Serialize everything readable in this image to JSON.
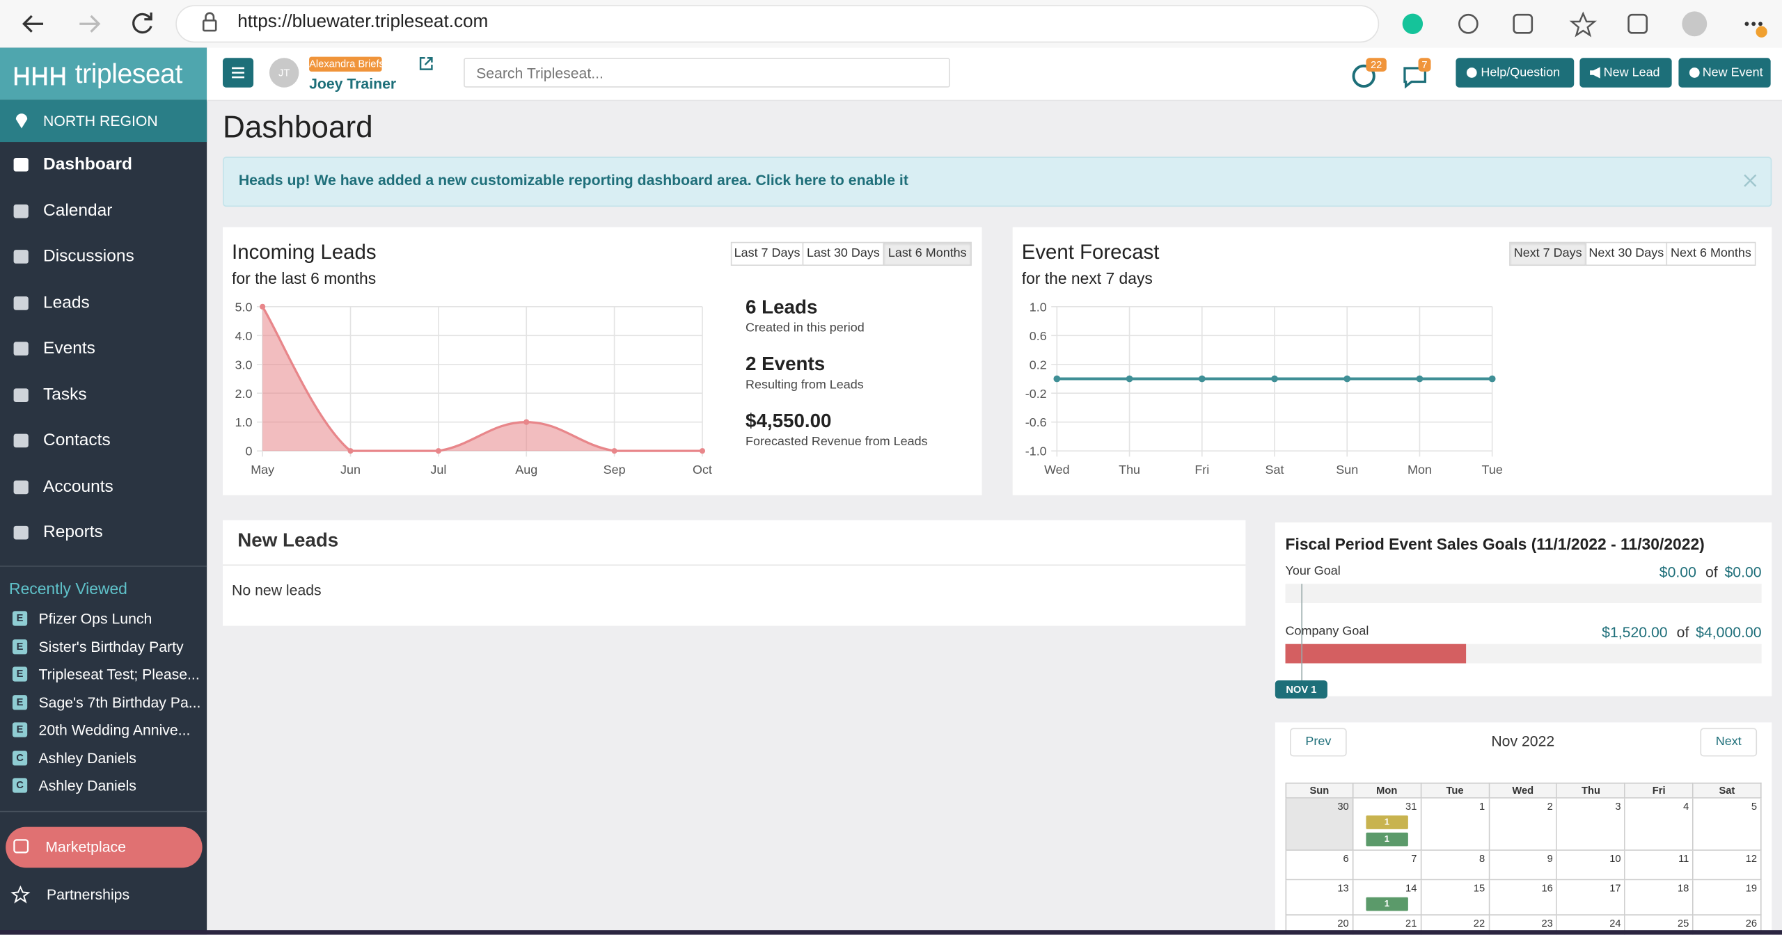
{
  "browser": {
    "url": "https://bluewater.tripleseat.com"
  },
  "sidebar": {
    "brand": "tripleseat",
    "region": "NORTH REGION",
    "nav": [
      "Dashboard",
      "Calendar",
      "Discussions",
      "Leads",
      "Events",
      "Tasks",
      "Contacts",
      "Accounts",
      "Reports"
    ],
    "active": 0,
    "recent_title": "Recently Viewed",
    "recent": [
      {
        "type": "E",
        "name": "Pfizer Ops Lunch"
      },
      {
        "type": "E",
        "name": "Sister's Birthday Party"
      },
      {
        "type": "E",
        "name": "Tripleseat Test; Please..."
      },
      {
        "type": "E",
        "name": "Sage's 7th Birthday Pa..."
      },
      {
        "type": "E",
        "name": "20th Wedding Annive..."
      },
      {
        "type": "C",
        "name": "Ashley Daniels"
      },
      {
        "type": "C",
        "name": "Ashley Daniels"
      }
    ],
    "marketplace": "Marketplace",
    "partnerships": "Partnerships"
  },
  "topbar": {
    "avatar": "JT",
    "impersonating": "Alexandra Briefs",
    "user": "Joey Trainer",
    "search_placeholder": "Search Tripleseat...",
    "notifications": 22,
    "messages": 7,
    "buttons": [
      "Help/Question",
      "New Lead",
      "New Event"
    ]
  },
  "page_title": "Dashboard",
  "alert": "Heads up! We have added a new customizable reporting dashboard area. Click here to enable it",
  "lead_ranges": {
    "options": [
      "Last 7 Days",
      "Last 30 Days",
      "Last 6 Months"
    ],
    "active": 2
  },
  "lead_stats": [
    {
      "value": "6 Leads",
      "label": "Created in this period"
    },
    {
      "value": "2 Events",
      "label": "Resulting from Leads"
    },
    {
      "value": "$4,550.00",
      "label": "Forecasted Revenue from Leads"
    }
  ],
  "forecast_ranges": {
    "options": [
      "Next 7 Days",
      "Next 30 Days",
      "Next 6 Months"
    ],
    "active": 0
  },
  "chart_data": [
    {
      "type": "area",
      "title": "Incoming Leads",
      "subtitle": "for the last 6 months",
      "categories": [
        "May",
        "Jun",
        "Jul",
        "Aug",
        "Sep",
        "Oct"
      ],
      "values": [
        5,
        0,
        0,
        1,
        0,
        0
      ],
      "color": "#e8868a",
      "ylim": [
        0,
        5
      ],
      "yticks": [
        0,
        {
          "value": 1,
          "label": "1.0"
        },
        {
          "value": 2,
          "label": "2.0"
        },
        {
          "value": 3,
          "label": "3.0"
        },
        {
          "value": 4,
          "label": "4.0"
        },
        {
          "value": 5,
          "label": "5.0"
        }
      ],
      "grid": true
    },
    {
      "type": "line",
      "title": "Event Forecast",
      "subtitle": "for the next 7 days",
      "categories": [
        "Wed",
        "Thu",
        "Fri",
        "Sat",
        "Sun",
        "Mon",
        "Tue"
      ],
      "values": [
        0,
        0,
        0,
        0,
        0,
        0,
        0
      ],
      "color": "#3f8f96",
      "ylim": [
        -1,
        1
      ],
      "yticks": [
        {
          "value": -1,
          "label": "-1.0"
        },
        -0.6,
        -0.2,
        0.2,
        0.6,
        {
          "value": 1,
          "label": "1.0"
        }
      ],
      "grid": true
    }
  ],
  "new_leads": {
    "title": "New Leads",
    "empty": "No new leads"
  },
  "goals": {
    "title": "Fiscal Period Event Sales Goals (11/1/2022 - 11/30/2022)",
    "of": "of",
    "rows": [
      {
        "label": "Your Goal",
        "value": 0,
        "value_label": "$0.00",
        "goal": 0,
        "goal_label": "$0.00"
      },
      {
        "label": "Company Goal",
        "value": 1520,
        "value_label": "$1,520.00",
        "goal": 4000,
        "goal_label": "$4,000.00"
      }
    ],
    "marker": "NOV 1"
  },
  "calendar": {
    "prev": "Prev",
    "next": "Next",
    "month": "Nov 2022",
    "weekdays": [
      "Sun",
      "Mon",
      "Tue",
      "Wed",
      "Thu",
      "Fri",
      "Sat"
    ],
    "weeks": [
      [
        {
          "day": 30,
          "muted": true
        },
        {
          "day": 31,
          "events": [
            {
              "count": 1,
              "status": "tentative"
            },
            {
              "count": 1,
              "status": "definite"
            }
          ]
        },
        {
          "day": 1
        },
        {
          "day": 2
        },
        {
          "day": 3
        },
        {
          "day": 4
        },
        {
          "day": 5
        }
      ],
      [
        {
          "day": 6
        },
        {
          "day": 7
        },
        {
          "day": 8
        },
        {
          "day": 9
        },
        {
          "day": 10
        },
        {
          "day": 11
        },
        {
          "day": 12
        }
      ],
      [
        {
          "day": 13
        },
        {
          "day": 14,
          "events": [
            {
              "count": 1,
              "status": "definite"
            }
          ]
        },
        {
          "day": 15
        },
        {
          "day": 16
        },
        {
          "day": 17
        },
        {
          "day": 18
        },
        {
          "day": 19
        }
      ],
      [
        {
          "day": 20
        },
        {
          "day": 21
        },
        {
          "day": 22
        },
        {
          "day": 23
        },
        {
          "day": 24
        },
        {
          "day": 25
        },
        {
          "day": 26
        }
      ]
    ]
  }
}
